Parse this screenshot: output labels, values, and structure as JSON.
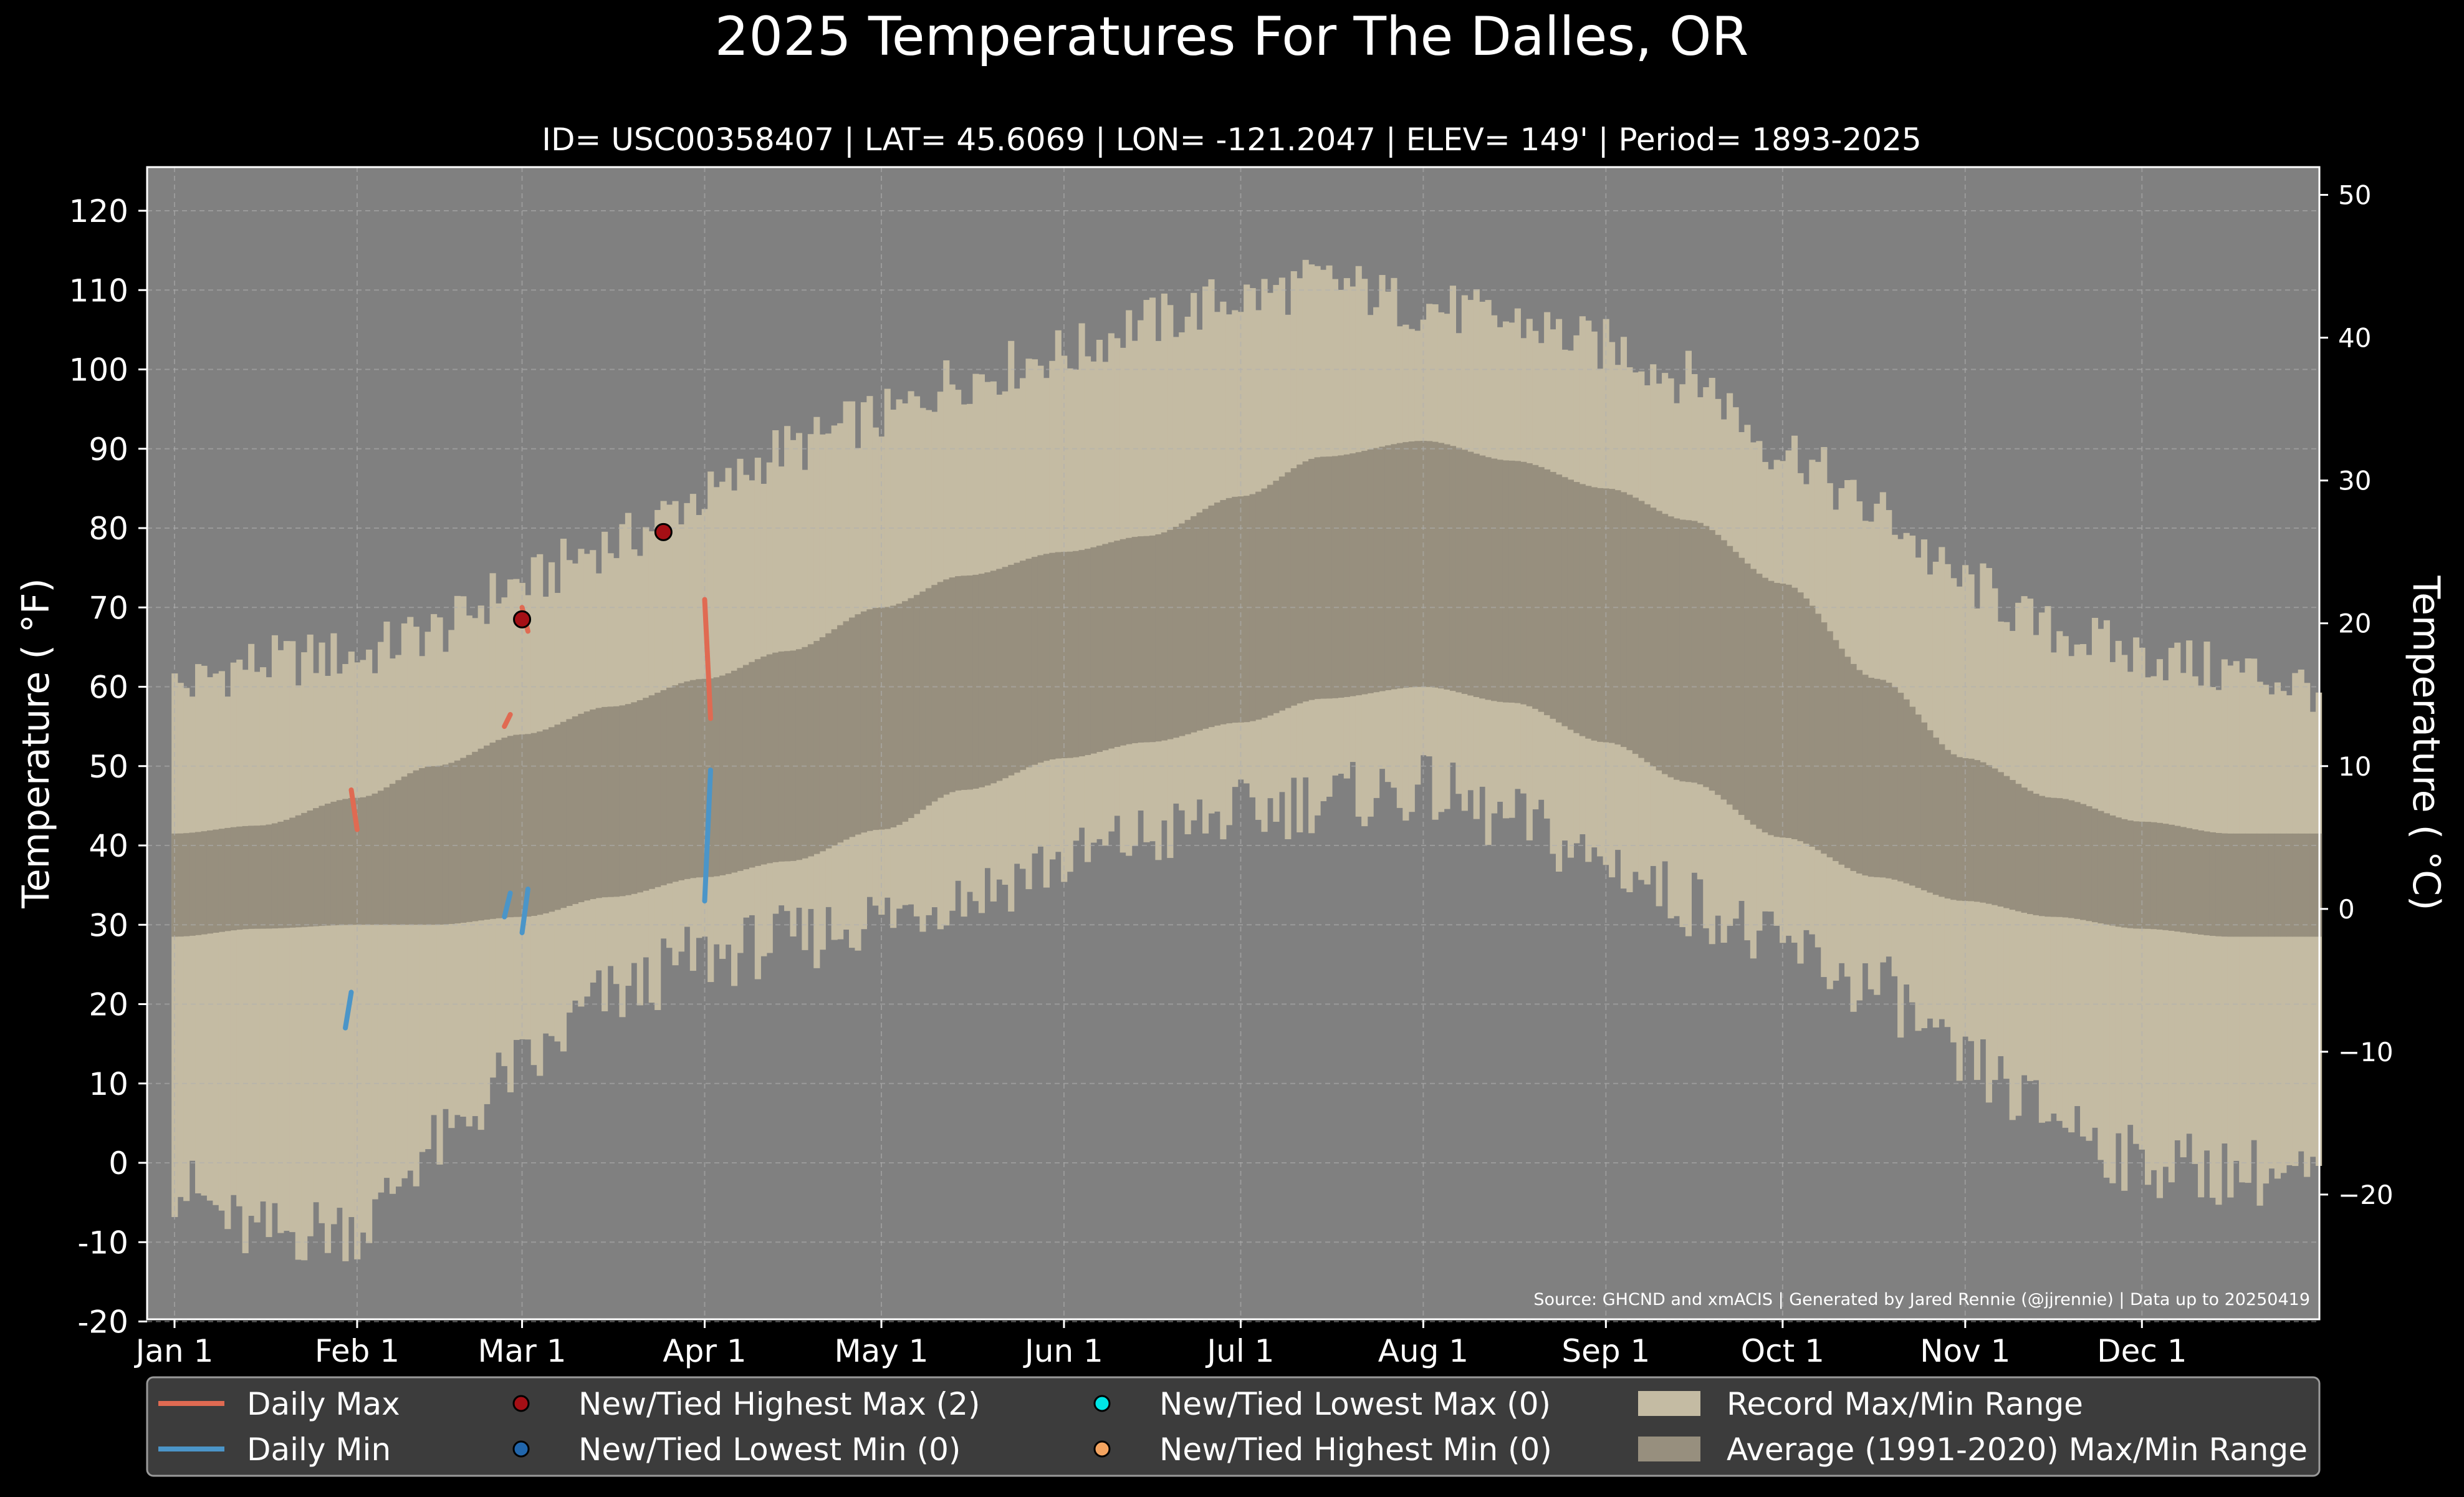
{
  "chart_data": {
    "type": "area",
    "title": "2025 Temperatures For The Dalles, OR",
    "subtitle": "ID= USC00358407 | LAT= 45.6069 | LON= -121.2047 | ELEV= 149' | Period= 1893-2025",
    "ylabel_left": "Temperature ( °F)",
    "ylabel_right": "Temperature ( °C)",
    "source_note": "Source: GHCND and xmACIS | Generated by Jared Rennie (@jjrennie) | Data up to 20250419",
    "ylim_f": [
      -20,
      125
    ],
    "yticks_f": [
      "-20",
      "-10",
      "0",
      "10",
      "20",
      "30",
      "40",
      "50",
      "60",
      "70",
      "80",
      "90",
      "100",
      "110",
      "120"
    ],
    "yticks_c": [
      "−20",
      "−10",
      "0",
      "10",
      "20",
      "30",
      "40",
      "50"
    ],
    "xticks": [
      {
        "label": "Jan 1",
        "day": 1
      },
      {
        "label": "Feb 1",
        "day": 32
      },
      {
        "label": "Mar 1",
        "day": 60
      },
      {
        "label": "Apr 1",
        "day": 91
      },
      {
        "label": "May 1",
        "day": 121
      },
      {
        "label": "Jun 1",
        "day": 152
      },
      {
        "label": "Jul 1",
        "day": 182
      },
      {
        "label": "Aug 1",
        "day": 213
      },
      {
        "label": "Sep 1",
        "day": 244
      },
      {
        "label": "Oct 1",
        "day": 274
      },
      {
        "label": "Nov 1",
        "day": 305
      },
      {
        "label": "Dec 1",
        "day": 335
      }
    ],
    "grid": true,
    "record_max_anchors": [
      [
        1,
        60
      ],
      [
        15,
        63
      ],
      [
        32,
        64
      ],
      [
        45,
        67
      ],
      [
        60,
        73
      ],
      [
        75,
        78
      ],
      [
        91,
        84
      ],
      [
        105,
        90
      ],
      [
        121,
        94
      ],
      [
        135,
        99
      ],
      [
        152,
        102
      ],
      [
        166,
        106
      ],
      [
        182,
        109
      ],
      [
        196,
        111
      ],
      [
        213,
        108
      ],
      [
        228,
        106
      ],
      [
        244,
        103
      ],
      [
        258,
        99
      ],
      [
        274,
        90
      ],
      [
        290,
        82
      ],
      [
        305,
        73
      ],
      [
        320,
        67
      ],
      [
        335,
        64
      ],
      [
        350,
        62
      ],
      [
        365,
        60
      ]
    ],
    "record_min_anchors": [
      [
        1,
        -3
      ],
      [
        15,
        -9
      ],
      [
        32,
        -8
      ],
      [
        45,
        2
      ],
      [
        60,
        12
      ],
      [
        75,
        21
      ],
      [
        91,
        26
      ],
      [
        105,
        28
      ],
      [
        121,
        31
      ],
      [
        135,
        34
      ],
      [
        152,
        38
      ],
      [
        166,
        41
      ],
      [
        182,
        44
      ],
      [
        196,
        46
      ],
      [
        213,
        47
      ],
      [
        228,
        43
      ],
      [
        244,
        38
      ],
      [
        258,
        33
      ],
      [
        274,
        27
      ],
      [
        290,
        22
      ],
      [
        305,
        12
      ],
      [
        320,
        6
      ],
      [
        335,
        0
      ],
      [
        350,
        -1
      ],
      [
        365,
        -2
      ]
    ],
    "avg_max_anchors": [
      [
        1,
        41.5
      ],
      [
        15,
        42.5
      ],
      [
        32,
        46
      ],
      [
        45,
        50
      ],
      [
        60,
        54
      ],
      [
        75,
        57.5
      ],
      [
        91,
        61
      ],
      [
        105,
        64.5
      ],
      [
        121,
        70
      ],
      [
        135,
        74
      ],
      [
        152,
        77
      ],
      [
        166,
        79
      ],
      [
        182,
        84
      ],
      [
        196,
        89
      ],
      [
        213,
        91
      ],
      [
        228,
        88.5
      ],
      [
        244,
        85
      ],
      [
        258,
        81
      ],
      [
        274,
        73
      ],
      [
        290,
        61
      ],
      [
        305,
        51
      ],
      [
        320,
        46
      ],
      [
        335,
        43
      ],
      [
        350,
        41.5
      ],
      [
        365,
        41.5
      ]
    ],
    "avg_min_anchors": [
      [
        1,
        28.5
      ],
      [
        15,
        29.5
      ],
      [
        32,
        30
      ],
      [
        45,
        30
      ],
      [
        60,
        31
      ],
      [
        75,
        33.5
      ],
      [
        91,
        36
      ],
      [
        105,
        38
      ],
      [
        121,
        42
      ],
      [
        135,
        47
      ],
      [
        152,
        51
      ],
      [
        166,
        53
      ],
      [
        182,
        55.5
      ],
      [
        196,
        58.5
      ],
      [
        213,
        60
      ],
      [
        228,
        58
      ],
      [
        244,
        53
      ],
      [
        258,
        48
      ],
      [
        274,
        41
      ],
      [
        290,
        36
      ],
      [
        305,
        33
      ],
      [
        320,
        31
      ],
      [
        335,
        29.5
      ],
      [
        350,
        28.5
      ],
      [
        365,
        28.5
      ]
    ],
    "series": [
      {
        "name": "Daily Max",
        "color": "#e06a52",
        "segments": [
          [
            [
              31,
              47
            ],
            [
              32,
              42
            ]
          ],
          [
            [
              57,
              55
            ],
            [
              58,
              56.5
            ]
          ],
          [
            [
              60,
              70
            ],
            [
              61,
              67
            ]
          ],
          [
            [
              91,
              71
            ],
            [
              92,
              56
            ]
          ]
        ]
      },
      {
        "name": "Daily Min",
        "color": "#4b95c8",
        "segments": [
          [
            [
              30,
              17
            ],
            [
              31,
              21.5
            ]
          ],
          [
            [
              57,
              31
            ],
            [
              58,
              34
            ]
          ],
          [
            [
              60,
              29
            ],
            [
              61,
              34.5
            ]
          ],
          [
            [
              91,
              33
            ],
            [
              92,
              49.5
            ]
          ]
        ]
      }
    ],
    "record_points": [
      {
        "day": 60,
        "value": 68.5
      },
      {
        "day": 84,
        "value": 79.5
      }
    ],
    "legend": {
      "placement": "bottom",
      "items": [
        {
          "label": "Daily Max",
          "kind": "line",
          "color": "#e06a52"
        },
        {
          "label": "Daily Min",
          "kind": "line",
          "color": "#4b95c8"
        },
        {
          "label": "New/Tied Highest Max (2)",
          "kind": "dot",
          "color": "#a50f15"
        },
        {
          "label": "New/Tied Lowest Min (0)",
          "kind": "dot",
          "color": "#2166ac"
        },
        {
          "label": "New/Tied Lowest Max (0)",
          "kind": "dot",
          "color": "#00e5e5"
        },
        {
          "label": "New/Tied Highest Min (0)",
          "kind": "dot",
          "color": "#f4a460"
        },
        {
          "label": "Record Max/Min Range",
          "kind": "patch",
          "color": "#c4bba3"
        },
        {
          "label": "Average (1991-2020) Max/Min Range",
          "kind": "patch",
          "color": "#978f7e"
        }
      ]
    },
    "colors": {
      "background": "#000000",
      "plot_bg": "#808080",
      "record_fill": "#c4bba3",
      "avg_fill": "#978f7e",
      "grid": "#b0b0b0"
    }
  }
}
